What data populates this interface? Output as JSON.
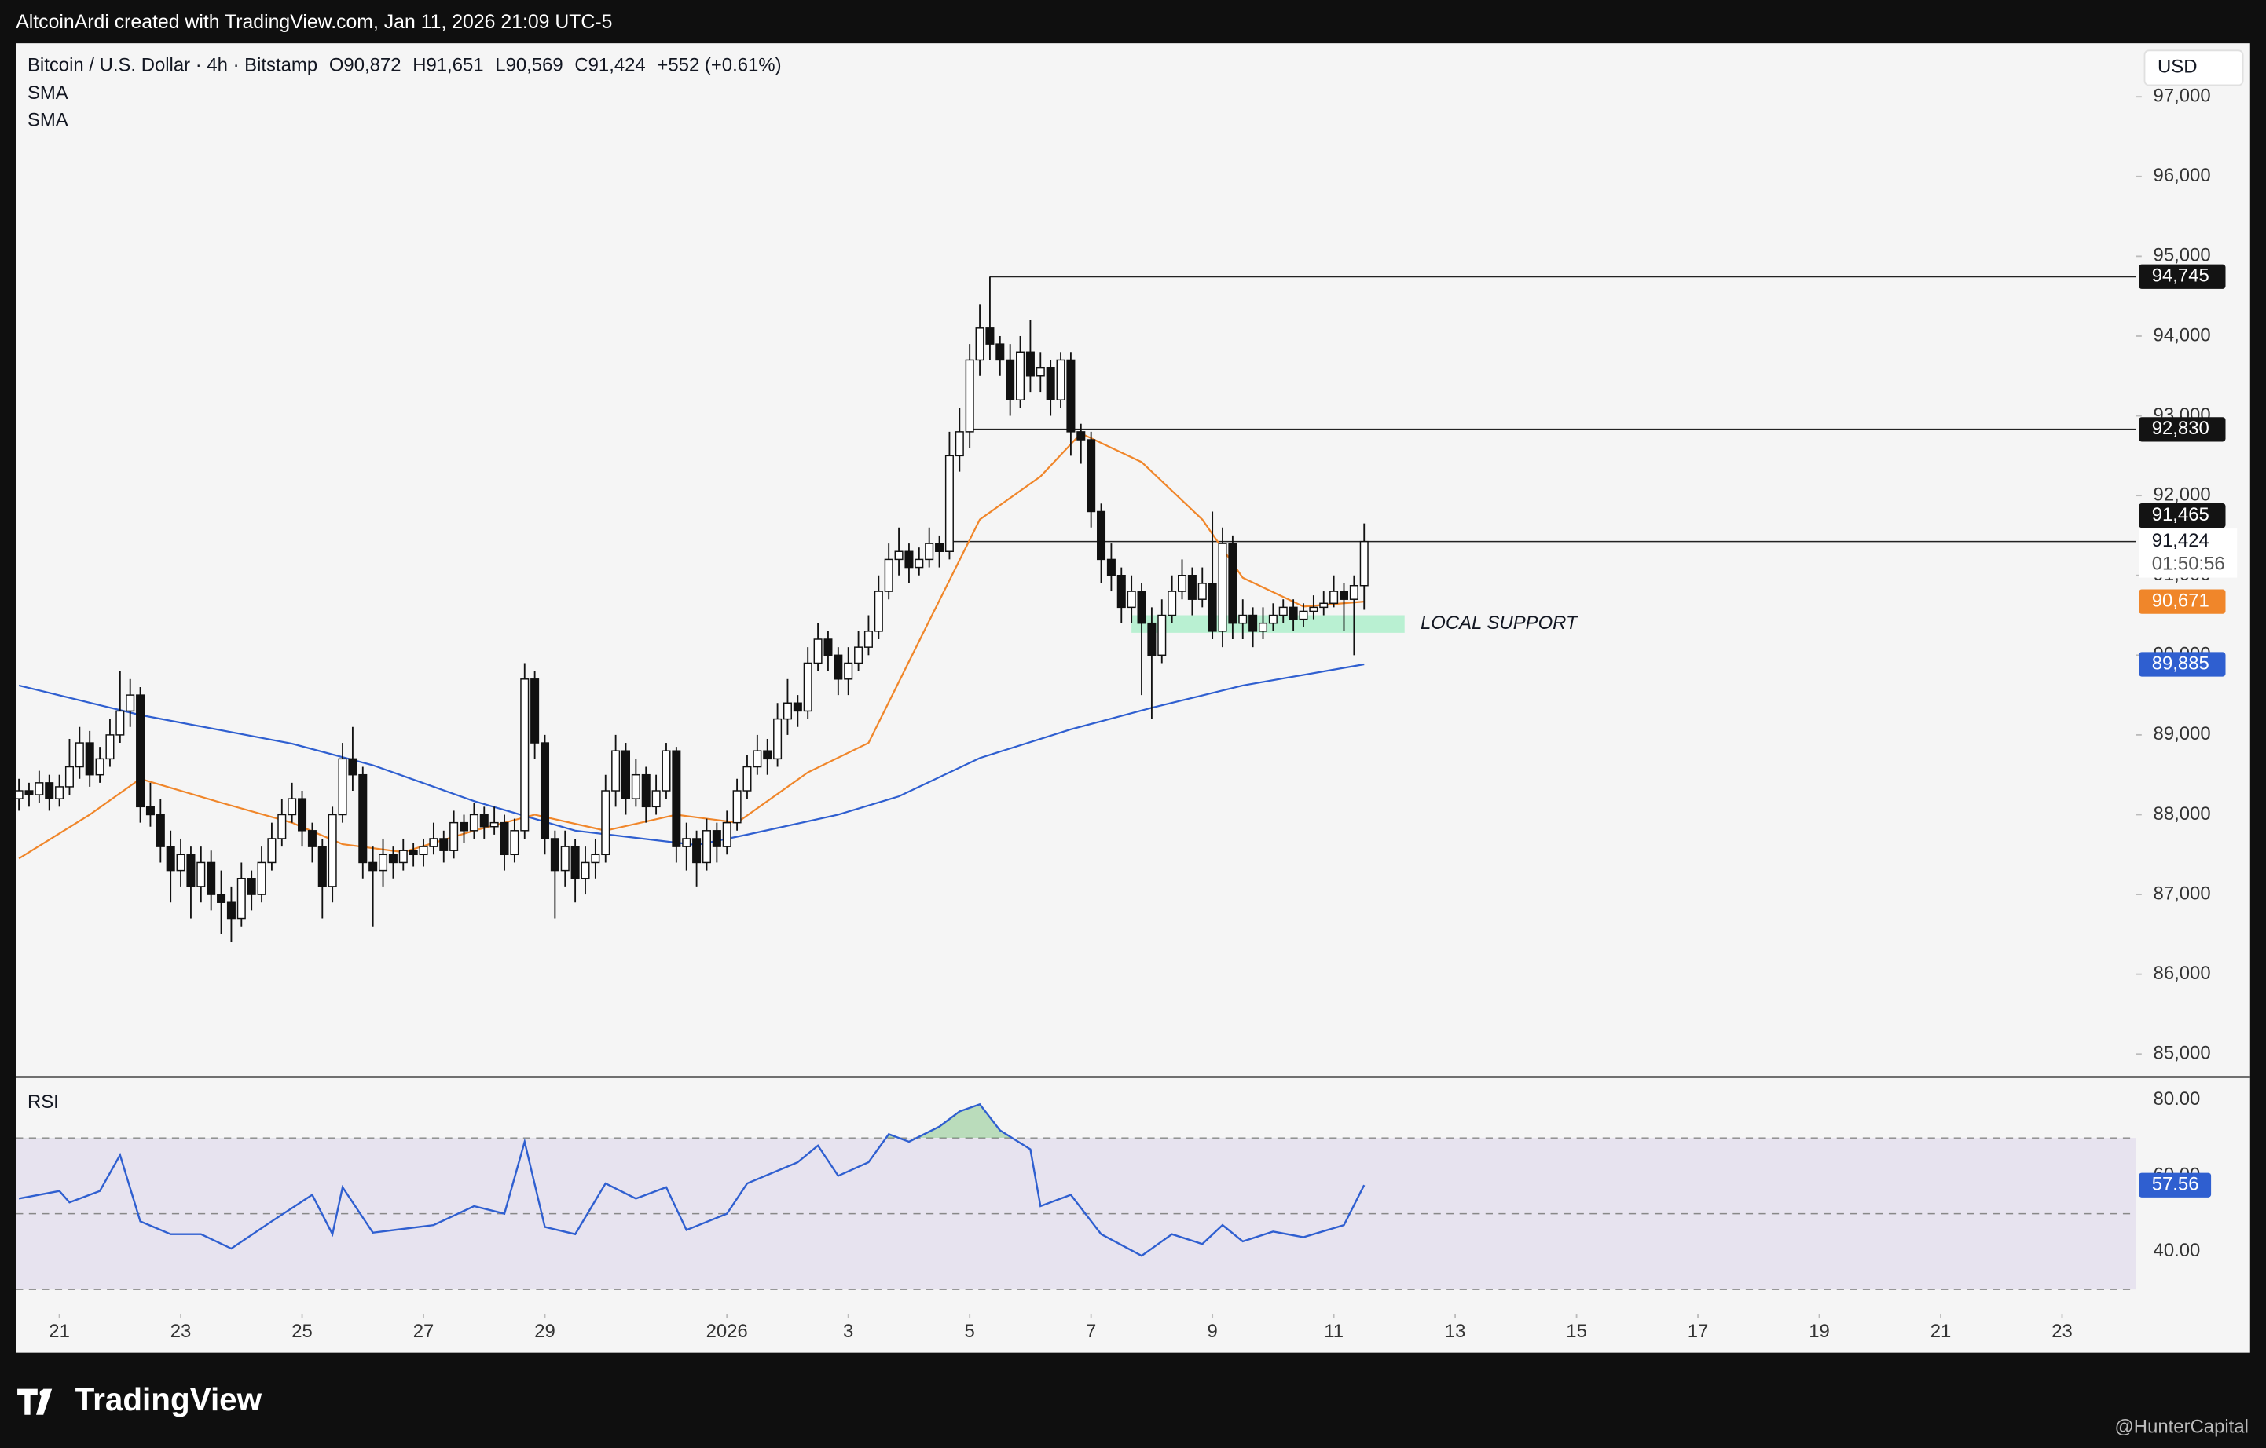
{
  "header": {
    "attribution": "AltcoinArdi created with TradingView.com, Jan 11, 2026 21:09 UTC-5"
  },
  "chart_data": {
    "type": "candlestick",
    "title": "Bitcoin / U.S. Dollar · 4h · Bitstamp",
    "legend": {
      "open": "O90,872",
      "high": "H91,651",
      "low": "L90,569",
      "close": "C91,424",
      "change": "+552 (+0.61%)"
    },
    "indicators": [
      "SMA",
      "SMA"
    ],
    "currency": "USD",
    "candles": [
      [
        88200,
        88450,
        88050,
        88300
      ],
      [
        88300,
        88400,
        88100,
        88250
      ],
      [
        88250,
        88550,
        88150,
        88400
      ],
      [
        88400,
        88500,
        88050,
        88200
      ],
      [
        88200,
        88500,
        88100,
        88350
      ],
      [
        88350,
        88950,
        88250,
        88600
      ],
      [
        88600,
        89100,
        88450,
        88900
      ],
      [
        88900,
        89050,
        88350,
        88500
      ],
      [
        88500,
        88850,
        88400,
        88700
      ],
      [
        88700,
        89200,
        88600,
        89000
      ],
      [
        89000,
        89800,
        88900,
        89300
      ],
      [
        89300,
        89700,
        89100,
        89500
      ],
      [
        89500,
        89600,
        87900,
        88100
      ],
      [
        88100,
        88400,
        87850,
        88000
      ],
      [
        88000,
        88200,
        87400,
        87600
      ],
      [
        87600,
        87800,
        86900,
        87300
      ],
      [
        87300,
        87700,
        87100,
        87500
      ],
      [
        87500,
        87600,
        86700,
        87100
      ],
      [
        87100,
        87600,
        86900,
        87400
      ],
      [
        87400,
        87550,
        86800,
        87000
      ],
      [
        87000,
        87300,
        86500,
        86900
      ],
      [
        86900,
        87100,
        86400,
        86700
      ],
      [
        86700,
        87400,
        86600,
        87200
      ],
      [
        87200,
        87300,
        86800,
        87000
      ],
      [
        87000,
        87600,
        86900,
        87400
      ],
      [
        87400,
        87900,
        87300,
        87700
      ],
      [
        87700,
        88200,
        87600,
        88000
      ],
      [
        88000,
        88400,
        87900,
        88200
      ],
      [
        88200,
        88300,
        87600,
        87800
      ],
      [
        87800,
        87900,
        87400,
        87600
      ],
      [
        87600,
        87700,
        86700,
        87100
      ],
      [
        87100,
        88100,
        86900,
        88000
      ],
      [
        88000,
        88900,
        87900,
        88700
      ],
      [
        88700,
        89100,
        88300,
        88500
      ],
      [
        88500,
        88600,
        87200,
        87400
      ],
      [
        87400,
        87600,
        86600,
        87300
      ],
      [
        87300,
        87700,
        87100,
        87500
      ],
      [
        87500,
        87600,
        87200,
        87400
      ],
      [
        87400,
        87700,
        87300,
        87550
      ],
      [
        87550,
        87650,
        87350,
        87500
      ],
      [
        87500,
        87700,
        87350,
        87600
      ],
      [
        87600,
        87900,
        87500,
        87700
      ],
      [
        87700,
        87800,
        87400,
        87550
      ],
      [
        87550,
        88050,
        87450,
        87900
      ],
      [
        87900,
        88000,
        87650,
        87800
      ],
      [
        87800,
        88150,
        87700,
        88000
      ],
      [
        88000,
        88100,
        87700,
        87850
      ],
      [
        87850,
        88100,
        87750,
        87900
      ],
      [
        87900,
        88000,
        87300,
        87500
      ],
      [
        87500,
        87950,
        87400,
        87800
      ],
      [
        87800,
        89900,
        87700,
        89700
      ],
      [
        89700,
        89800,
        88700,
        88900
      ],
      [
        88900,
        89000,
        87500,
        87700
      ],
      [
        87700,
        87800,
        86700,
        87300
      ],
      [
        87300,
        87800,
        87100,
        87600
      ],
      [
        87600,
        87700,
        86900,
        87200
      ],
      [
        87200,
        87600,
        87000,
        87400
      ],
      [
        87400,
        87700,
        87200,
        87500
      ],
      [
        87500,
        88500,
        87400,
        88300
      ],
      [
        88300,
        89000,
        88100,
        88800
      ],
      [
        88800,
        88900,
        88000,
        88200
      ],
      [
        88200,
        88700,
        88100,
        88500
      ],
      [
        88500,
        88600,
        87900,
        88100
      ],
      [
        88100,
        88500,
        88000,
        88300
      ],
      [
        88300,
        88900,
        88200,
        88800
      ],
      [
        88800,
        88850,
        87400,
        87600
      ],
      [
        87600,
        87900,
        87300,
        87700
      ],
      [
        87700,
        87800,
        87100,
        87400
      ],
      [
        87400,
        87950,
        87300,
        87800
      ],
      [
        87800,
        87900,
        87400,
        87600
      ],
      [
        87600,
        88050,
        87500,
        87900
      ],
      [
        87900,
        88450,
        87800,
        88300
      ],
      [
        88300,
        88750,
        88200,
        88600
      ],
      [
        88600,
        89000,
        88500,
        88800
      ],
      [
        88800,
        88950,
        88500,
        88700
      ],
      [
        88700,
        89400,
        88600,
        89200
      ],
      [
        89200,
        89700,
        89000,
        89400
      ],
      [
        89400,
        89500,
        89100,
        89300
      ],
      [
        89300,
        90100,
        89200,
        89900
      ],
      [
        89900,
        90400,
        89800,
        90200
      ],
      [
        90200,
        90300,
        89800,
        90000
      ],
      [
        90000,
        90100,
        89500,
        89700
      ],
      [
        89700,
        90100,
        89500,
        89900
      ],
      [
        89900,
        90300,
        89800,
        90100
      ],
      [
        90100,
        90500,
        90000,
        90300
      ],
      [
        90300,
        91000,
        90200,
        90800
      ],
      [
        90800,
        91400,
        90700,
        91200
      ],
      [
        91200,
        91600,
        91000,
        91300
      ],
      [
        91300,
        91400,
        90900,
        91100
      ],
      [
        91100,
        91350,
        91000,
        91200
      ],
      [
        91200,
        91600,
        91100,
        91400
      ],
      [
        91400,
        91500,
        91100,
        91300
      ],
      [
        91300,
        92800,
        91200,
        92500
      ],
      [
        92500,
        93100,
        92300,
        92800
      ],
      [
        92800,
        93900,
        92600,
        93700
      ],
      [
        93700,
        94400,
        93500,
        94100
      ],
      [
        94100,
        94745,
        93700,
        93900
      ],
      [
        93900,
        94000,
        93500,
        93700
      ],
      [
        93700,
        93900,
        93000,
        93200
      ],
      [
        93200,
        94000,
        93100,
        93800
      ],
      [
        93800,
        94200,
        93300,
        93500
      ],
      [
        93500,
        93800,
        93300,
        93600
      ],
      [
        93600,
        93700,
        93000,
        93200
      ],
      [
        93200,
        93800,
        93100,
        93700
      ],
      [
        93700,
        93800,
        92500,
        92800
      ],
      [
        92800,
        92900,
        92400,
        92700
      ],
      [
        92700,
        92800,
        91600,
        91800
      ],
      [
        91800,
        91900,
        90900,
        91200
      ],
      [
        91200,
        91400,
        90800,
        91000
      ],
      [
        91000,
        91100,
        90400,
        90600
      ],
      [
        90600,
        91000,
        90400,
        90800
      ],
      [
        90800,
        90900,
        89500,
        90400
      ],
      [
        90400,
        90600,
        89200,
        90000
      ],
      [
        90000,
        90700,
        89900,
        90500
      ],
      [
        90500,
        91000,
        90400,
        90800
      ],
      [
        90800,
        91200,
        90700,
        91000
      ],
      [
        91000,
        91100,
        90500,
        90700
      ],
      [
        90700,
        91100,
        90600,
        90900
      ],
      [
        90900,
        91800,
        90200,
        90300
      ],
      [
        90300,
        91600,
        90100,
        91400
      ],
      [
        91400,
        91500,
        90200,
        90400
      ],
      [
        90400,
        90700,
        90200,
        90500
      ],
      [
        90500,
        90600,
        90100,
        90300
      ],
      [
        90300,
        90600,
        90200,
        90400
      ],
      [
        90400,
        90650,
        90300,
        90500
      ],
      [
        90500,
        90700,
        90400,
        90600
      ],
      [
        90600,
        90700,
        90300,
        90450
      ],
      [
        90450,
        90650,
        90350,
        90550
      ],
      [
        90550,
        90750,
        90450,
        90600
      ],
      [
        90600,
        90800,
        90500,
        90650
      ],
      [
        90650,
        91000,
        90600,
        90800
      ],
      [
        90800,
        90900,
        90300,
        90700
      ],
      [
        90700,
        91000,
        90000,
        90872
      ],
      [
        90872,
        91651,
        90569,
        91424
      ]
    ],
    "xlim": [
      -0.3,
      209.3
    ],
    "xticks": [
      {
        "value": 4,
        "label": "21"
      },
      {
        "value": 16,
        "label": "23"
      },
      {
        "value": 28,
        "label": "25"
      },
      {
        "value": 40,
        "label": "27"
      },
      {
        "value": 52,
        "label": "29"
      },
      {
        "value": 70,
        "label": "2026"
      },
      {
        "value": 82,
        "label": "3"
      },
      {
        "value": 94,
        "label": "5"
      },
      {
        "value": 106,
        "label": "7"
      },
      {
        "value": 118,
        "label": "9"
      },
      {
        "value": 130,
        "label": "11"
      },
      {
        "value": 142,
        "label": "13"
      },
      {
        "value": 154,
        "label": "15"
      },
      {
        "value": 166,
        "label": "17"
      },
      {
        "value": 178,
        "label": "19"
      },
      {
        "value": 190,
        "label": "21"
      },
      {
        "value": 202,
        "label": "23"
      }
    ],
    "ylim": [
      84730,
      97670
    ],
    "yticks": [
      {
        "value": 85000,
        "label": "85,000"
      },
      {
        "value": 86000,
        "label": "86,000"
      },
      {
        "value": 87000,
        "label": "87,000"
      },
      {
        "value": 88000,
        "label": "88,000"
      },
      {
        "value": 89000,
        "label": "89,000"
      },
      {
        "value": 90000,
        "label": "90,000"
      },
      {
        "value": 91000,
        "label": "91,000"
      },
      {
        "value": 92000,
        "label": "92,000"
      },
      {
        "value": 93000,
        "label": "93,000"
      },
      {
        "value": 94000,
        "label": "94,000"
      },
      {
        "value": 95000,
        "label": "95,000"
      },
      {
        "value": 96000,
        "label": "96,000"
      },
      {
        "value": 97000,
        "label": "97,000"
      }
    ],
    "sma": [
      {
        "color": "#f0862a",
        "x": [
          0,
          7,
          12,
          20,
          27,
          32,
          38,
          45,
          51,
          58,
          65,
          71,
          78,
          84,
          90,
          95,
          101,
          105,
          111,
          117,
          121,
          127,
          133
        ],
        "values": [
          87450,
          88000,
          88450,
          88150,
          87900,
          87630,
          87530,
          87800,
          88000,
          87800,
          88000,
          87900,
          88530,
          88900,
          90430,
          91700,
          92240,
          92780,
          92420,
          91700,
          90970,
          90610,
          90671
        ],
        "value_label": "90,671"
      },
      {
        "color": "#2f5fd0",
        "x": [
          0,
          12,
          27,
          35,
          45,
          55,
          67,
          72,
          81,
          87,
          95,
          104,
          112,
          121,
          133
        ],
        "values": [
          89620,
          89250,
          88890,
          88620,
          88170,
          87800,
          87620,
          87750,
          88000,
          88230,
          88710,
          89070,
          89340,
          89620,
          89885
        ],
        "value_label": "89,885"
      }
    ],
    "levels": [
      {
        "value": 94745,
        "label": "94,745",
        "from": 96
      },
      {
        "value": 92830,
        "label": "92,830",
        "from": 94
      }
    ],
    "high_tag": {
      "value": 91465,
      "label": "91,465"
    },
    "current": {
      "value": 91424,
      "label": "91,424",
      "countdown": "01:50:56",
      "from": 92
    },
    "zone": {
      "label": "LOCAL SUPPORT",
      "range": [
        90280,
        90500
      ],
      "x": [
        110,
        137
      ]
    },
    "rsi": {
      "title": "RSI",
      "color": "#2f5fd0",
      "x": [
        0,
        4,
        5,
        8,
        10,
        12,
        15,
        18,
        21,
        25,
        29,
        31,
        32,
        35,
        41,
        45,
        48,
        50,
        52,
        55,
        58,
        61,
        64,
        66,
        70,
        72,
        77,
        79,
        81,
        84,
        86,
        88,
        91,
        93,
        95,
        97,
        100,
        101,
        104,
        107,
        111,
        114,
        117,
        119,
        121,
        124,
        127,
        131,
        133
      ],
      "values": [
        54,
        56,
        53,
        56,
        65.5,
        48,
        44.6,
        44.6,
        40.8,
        48,
        55,
        44.6,
        57,
        45,
        47,
        52,
        50,
        69,
        46.5,
        44.6,
        58,
        54,
        57,
        45.7,
        50,
        58,
        63.6,
        68,
        60,
        63.6,
        71,
        69,
        73,
        77,
        78.9,
        72,
        67,
        52,
        55,
        44.6,
        38.9,
        44.6,
        42,
        47,
        42.7,
        45.3,
        43.8,
        47,
        57.56
      ],
      "value_label": "57.56",
      "ylim": [
        23.6,
        86.1
      ],
      "yticks": [
        {
          "value": 80,
          "label": "80.00"
        },
        {
          "value": 60,
          "label": "60.00"
        },
        {
          "value": 40,
          "label": "40.00"
        }
      ],
      "band": [
        30,
        70
      ],
      "mid": 50
    }
  },
  "footer": {
    "brand": "TradingView",
    "credit": "@HunterCapital"
  }
}
